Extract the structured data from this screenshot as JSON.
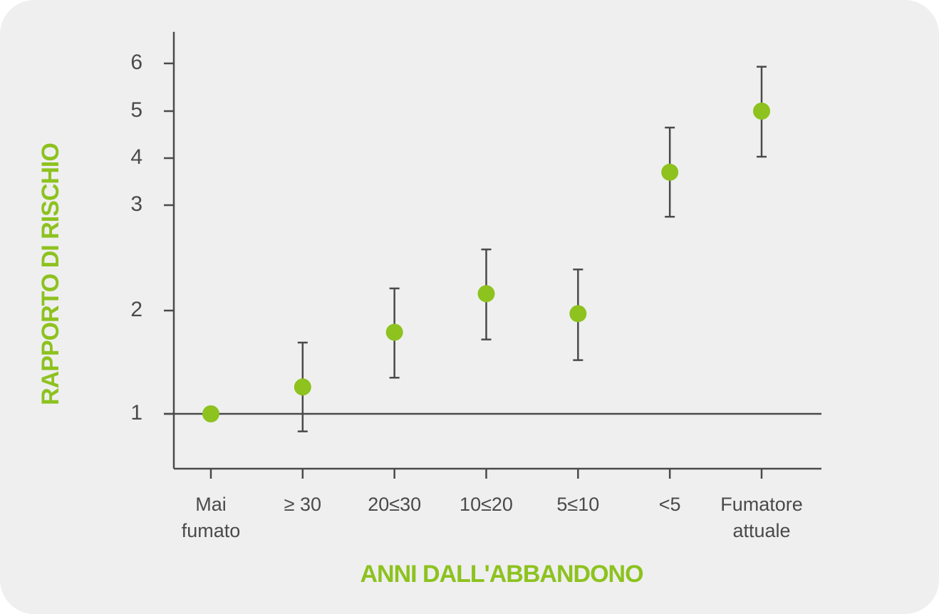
{
  "chart_data": {
    "type": "errorbar",
    "x_label": "ANNI DALL'ABBANDONO",
    "y_label": "RAPPORTO DI RISCHIO",
    "categories": [
      [
        "Mai",
        "fumato"
      ],
      [
        "≥ 30"
      ],
      [
        "20≤30"
      ],
      [
        "10≤20"
      ],
      [
        "5≤10"
      ],
      [
        "<5"
      ],
      [
        "Fumatore",
        "attuale"
      ]
    ],
    "values": [
      1.0,
      1.26,
      1.79,
      2.16,
      1.97,
      3.7,
      5.0
    ],
    "ci_low": [
      1.0,
      0.83,
      1.35,
      1.72,
      1.52,
      2.89,
      4.03
    ],
    "ci_high": [
      1.0,
      1.69,
      2.21,
      2.58,
      2.39,
      4.65,
      5.93
    ],
    "color": "#8dc21f",
    "line_color": "#4a4a4a",
    "reference_line": 1,
    "ylim": [
      0.47,
      6.66
    ],
    "yticks": [
      1,
      2,
      3,
      4,
      5,
      6
    ],
    "grid": false
  }
}
